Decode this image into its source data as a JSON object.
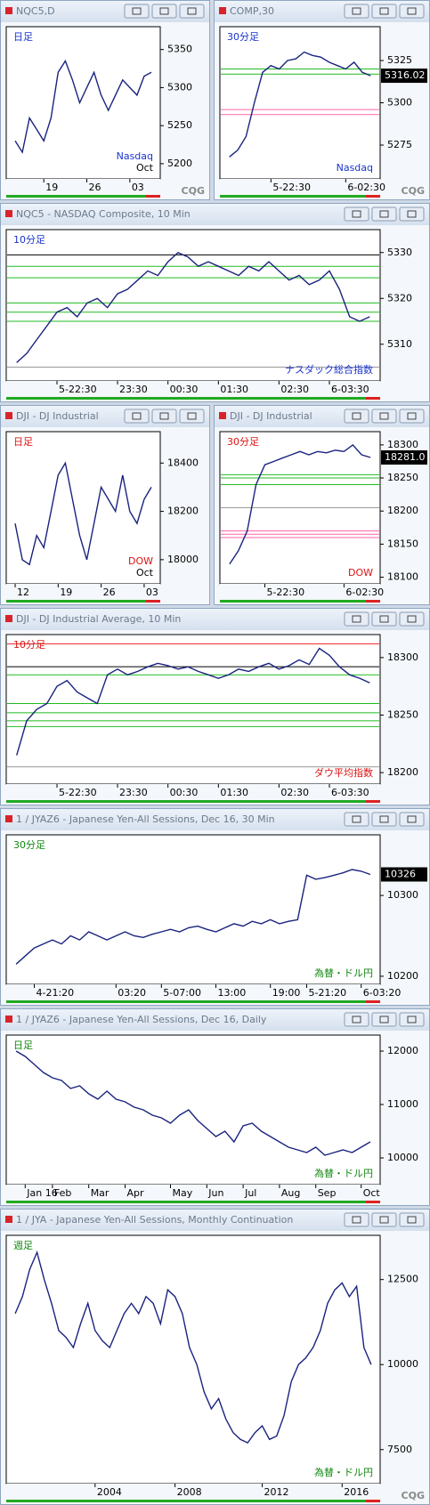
{
  "brand": "CQG",
  "chart_data": [
    {
      "type": "line",
      "title": "NQC5,D",
      "label": "日足",
      "label_color": "#1a33cc",
      "note": [
        "Nasdaq",
        "Oct"
      ],
      "note_color": "#1a33cc",
      "color": "#1a237e",
      "ylim": [
        5180,
        5380
      ],
      "yticks": [
        5200,
        5250,
        5300,
        5350
      ],
      "values": [
        5230,
        5215,
        5260,
        5245,
        5230,
        5260,
        5320,
        5335,
        5310,
        5280,
        5300,
        5320,
        5290,
        5270,
        5290,
        5310,
        5300,
        5290,
        5315,
        5320
      ],
      "categories": [
        null,
        null,
        null,
        null,
        "19",
        null,
        null,
        null,
        null,
        null,
        "26",
        null,
        null,
        null,
        null,
        null,
        "03",
        null,
        null,
        null
      ]
    },
    {
      "type": "line",
      "title": "COMP,30",
      "label": "30分足",
      "label_color": "#1a33cc",
      "note": [
        "Nasdaq"
      ],
      "note_color": "#1a33cc",
      "color": "#1a237e",
      "ylim": [
        5255,
        5345
      ],
      "yticks": [
        5275,
        5300,
        5325
      ],
      "last": 5316.02,
      "levels": [
        {
          "value": 5320,
          "color": "#22bb22"
        },
        {
          "value": 5317,
          "color": "#22bb22"
        },
        {
          "value": 5296,
          "color": "#ff66aa"
        },
        {
          "value": 5293,
          "color": "#ff66aa"
        }
      ],
      "values": [
        5268,
        5272,
        5280,
        5300,
        5318,
        5322,
        5320,
        5325,
        5326,
        5330,
        5328,
        5327,
        5324,
        5322,
        5320,
        5324,
        5318,
        5316.02
      ],
      "categories": [
        null,
        null,
        null,
        null,
        null,
        "5-22:30",
        null,
        null,
        null,
        null,
        null,
        null,
        null,
        null,
        "6-02:30",
        null,
        null,
        null
      ]
    },
    {
      "type": "line",
      "title": "NQC5 - NASDAQ Composite, 10 Min",
      "label": "10分足",
      "label_color": "#1a33cc",
      "note": [
        "ナスダック総合指数"
      ],
      "note_color": "#1a33cc",
      "color": "#1a237e",
      "ylim": [
        5302,
        5335
      ],
      "yticks": [
        5310,
        5320,
        5330
      ],
      "levels": [
        {
          "value": 5329.5,
          "color": "#000000"
        },
        {
          "value": 5327,
          "color": "#22bb22"
        },
        {
          "value": 5324.5,
          "color": "#22bb22"
        },
        {
          "value": 5319,
          "color": "#22bb22"
        },
        {
          "value": 5317,
          "color": "#22bb22"
        },
        {
          "value": 5315,
          "color": "#22bb22"
        },
        {
          "value": 5305,
          "color": "#999999"
        }
      ],
      "values": [
        5306,
        5308,
        5311,
        5314,
        5317,
        5318,
        5316,
        5319,
        5320,
        5318,
        5321,
        5322,
        5324,
        5326,
        5325,
        5328,
        5330,
        5329,
        5327,
        5328,
        5327,
        5326,
        5325,
        5327,
        5326,
        5328,
        5326,
        5324,
        5325,
        5323,
        5324,
        5326,
        5322,
        5316,
        5315,
        5316
      ],
      "categories": [
        null,
        null,
        null,
        null,
        "5-22:30",
        null,
        null,
        null,
        null,
        null,
        "23:30",
        null,
        null,
        null,
        null,
        "00:30",
        null,
        null,
        null,
        null,
        "01:30",
        null,
        null,
        null,
        null,
        null,
        "02:30",
        null,
        null,
        null,
        null,
        "6-03:30",
        null,
        null,
        null,
        null
      ]
    },
    {
      "type": "line",
      "title": "DJI - DJ Industrial",
      "label": "日足",
      "label_color": "#dd1111",
      "note": [
        "DOW",
        "Oct"
      ],
      "note_color": "#dd1111",
      "color": "#1a237e",
      "ylim": [
        17900,
        18530
      ],
      "yticks": [
        18000,
        18200,
        18400
      ],
      "values": [
        18150,
        18000,
        17980,
        18100,
        18050,
        18200,
        18350,
        18400,
        18250,
        18100,
        18000,
        18150,
        18300,
        18250,
        18200,
        18350,
        18200,
        18150,
        18250,
        18300
      ],
      "categories": [
        "12",
        null,
        null,
        null,
        null,
        null,
        "19",
        null,
        null,
        null,
        null,
        null,
        "26",
        null,
        null,
        null,
        null,
        null,
        "03",
        null
      ]
    },
    {
      "type": "line",
      "title": "DJI - DJ Industrial",
      "label": "30分足",
      "label_color": "#dd1111",
      "note": [
        "DOW"
      ],
      "note_color": "#dd1111",
      "color": "#1a237e",
      "ylim": [
        18090,
        18320
      ],
      "yticks": [
        18100,
        18150,
        18200,
        18250,
        18300
      ],
      "last": {
        "value": 18281,
        "label": "18281.0"
      },
      "levels": [
        {
          "value": 18255,
          "color": "#22bb22"
        },
        {
          "value": 18250,
          "color": "#22bb22"
        },
        {
          "value": 18240,
          "color": "#22bb22"
        },
        {
          "value": 18205,
          "color": "#999999"
        },
        {
          "value": 18170,
          "color": "#ff66aa"
        },
        {
          "value": 18165,
          "color": "#ff66aa"
        },
        {
          "value": 18160,
          "color": "#ff66aa"
        }
      ],
      "values": [
        18120,
        18140,
        18170,
        18240,
        18270,
        18275,
        18280,
        18285,
        18290,
        18285,
        18290,
        18288,
        18292,
        18290,
        18300,
        18285,
        18281
      ],
      "categories": [
        null,
        null,
        null,
        null,
        "5-22:30",
        null,
        null,
        null,
        null,
        null,
        null,
        null,
        null,
        "6-02:30",
        null,
        null,
        null
      ]
    },
    {
      "type": "line",
      "title": "DJI - DJ Industrial Average, 10 Min",
      "label": "10分足",
      "label_color": "#dd1111",
      "note": [
        "ダウ平均指数"
      ],
      "note_color": "#dd1111",
      "color": "#1a237e",
      "ylim": [
        18190,
        18320
      ],
      "yticks": [
        18200,
        18250,
        18300
      ],
      "levels": [
        {
          "value": 18312,
          "color": "#ee2222"
        },
        {
          "value": 18292,
          "color": "#000000"
        },
        {
          "value": 18285,
          "color": "#22bb22"
        },
        {
          "value": 18260,
          "color": "#22bb22"
        },
        {
          "value": 18252,
          "color": "#22bb22"
        },
        {
          "value": 18245,
          "color": "#22bb22"
        },
        {
          "value": 18240,
          "color": "#22bb22"
        },
        {
          "value": 18205,
          "color": "#999999"
        }
      ],
      "values": [
        18215,
        18245,
        18255,
        18260,
        18275,
        18280,
        18270,
        18265,
        18260,
        18285,
        18290,
        18285,
        18288,
        18292,
        18295,
        18293,
        18290,
        18292,
        18288,
        18285,
        18282,
        18285,
        18290,
        18288,
        18292,
        18295,
        18290,
        18293,
        18298,
        18294,
        18308,
        18302,
        18292,
        18285,
        18282,
        18278
      ],
      "categories": [
        null,
        null,
        null,
        null,
        "5-22:30",
        null,
        null,
        null,
        null,
        null,
        "23:30",
        null,
        null,
        null,
        null,
        "00:30",
        null,
        null,
        null,
        null,
        "01:30",
        null,
        null,
        null,
        null,
        null,
        "02:30",
        null,
        null,
        null,
        null,
        "6-03:30",
        null,
        null,
        null,
        null
      ]
    },
    {
      "type": "line",
      "title": "1 / JYAZ6 - Japanese Yen-All Sessions, Dec 16, 30 Min",
      "label": "30分足",
      "label_color": "#118811",
      "note": [
        "為替・ドル円"
      ],
      "note_color": "#118811",
      "color": "#1a237e",
      "ylim": [
        10190,
        10375
      ],
      "yticks": [
        10200,
        10300
      ],
      "last": 10326,
      "values": [
        10215,
        10225,
        10235,
        10240,
        10245,
        10240,
        10250,
        10245,
        10255,
        10250,
        10245,
        10250,
        10255,
        10250,
        10248,
        10252,
        10255,
        10258,
        10255,
        10260,
        10262,
        10258,
        10255,
        10260,
        10265,
        10262,
        10268,
        10265,
        10270,
        10265,
        10268,
        10270,
        10325,
        10320,
        10322,
        10325,
        10328,
        10332,
        10330,
        10326
      ],
      "categories": [
        null,
        null,
        "4-21:20",
        null,
        null,
        null,
        null,
        null,
        null,
        null,
        null,
        "03:20",
        null,
        null,
        null,
        null,
        "5-07:00",
        null,
        null,
        null,
        null,
        null,
        "13:00",
        null,
        null,
        null,
        null,
        null,
        "19:00",
        null,
        null,
        null,
        "5-21:20",
        null,
        null,
        null,
        null,
        null,
        "6-03:20",
        null
      ]
    },
    {
      "type": "line",
      "title": "1 / JYAZ6 - Japanese Yen-All Sessions, Dec 16, Daily",
      "label": "日足",
      "label_color": "#118811",
      "note": [
        "為替・ドル円"
      ],
      "note_color": "#118811",
      "color": "#1a237e",
      "ylim": [
        9500,
        12300
      ],
      "yticks": [
        10000,
        11000,
        12000
      ],
      "values": [
        12000,
        11900,
        11750,
        11600,
        11500,
        11450,
        11300,
        11350,
        11200,
        11100,
        11250,
        11100,
        11050,
        10950,
        10900,
        10800,
        10750,
        10650,
        10800,
        10900,
        10700,
        10550,
        10400,
        10500,
        10300,
        10600,
        10650,
        10500,
        10400,
        10300,
        10200,
        10150,
        10100,
        10200,
        10050,
        10100,
        10150,
        10100,
        10200,
        10300
      ],
      "categories": [
        null,
        "Jan 16",
        null,
        null,
        "Feb",
        null,
        null,
        null,
        "Mar",
        null,
        null,
        null,
        "Apr",
        null,
        null,
        null,
        null,
        "May",
        null,
        null,
        null,
        "Jun",
        null,
        null,
        null,
        "Jul",
        null,
        null,
        null,
        "Aug",
        null,
        null,
        null,
        "Sep",
        null,
        null,
        null,
        null,
        "Oct",
        null
      ]
    },
    {
      "type": "line",
      "title": "1 / JYA - Japanese Yen-All Sessions, Monthly Continuation",
      "label": "週足",
      "label_color": "#118811",
      "note": [
        "為替・ドル円"
      ],
      "note_color": "#118811",
      "color": "#1a237e",
      "ylim": [
        6500,
        13800
      ],
      "yticks": [
        7500,
        10000,
        12500
      ],
      "values": [
        11500,
        12000,
        12800,
        13300,
        12500,
        11800,
        11000,
        10800,
        10500,
        11200,
        11800,
        11000,
        10700,
        10500,
        11000,
        11500,
        11800,
        11500,
        12000,
        11800,
        11200,
        12200,
        12000,
        11500,
        10500,
        10000,
        9200,
        8700,
        9000,
        8400,
        8000,
        7800,
        7700,
        8000,
        8200,
        7800,
        7900,
        8500,
        9500,
        10000,
        10200,
        10500,
        11000,
        11800,
        12200,
        12400,
        12000,
        12300,
        10500,
        10000
      ],
      "categories": [
        null,
        null,
        null,
        null,
        null,
        null,
        null,
        null,
        null,
        null,
        null,
        "2004",
        null,
        null,
        null,
        null,
        null,
        null,
        null,
        null,
        null,
        null,
        "2008",
        null,
        null,
        null,
        null,
        null,
        null,
        null,
        null,
        null,
        null,
        null,
        "2012",
        null,
        null,
        null,
        null,
        null,
        null,
        null,
        null,
        null,
        null,
        "2016",
        null,
        null,
        null,
        null
      ]
    }
  ]
}
